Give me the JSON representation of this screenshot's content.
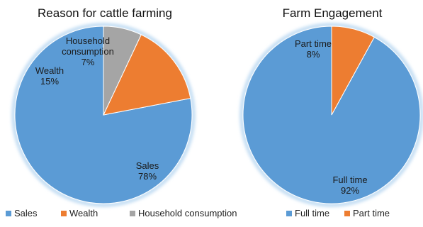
{
  "colors": {
    "sales": "#5b9bd5",
    "wealth": "#ed7d31",
    "household": "#a5a5a5",
    "full_time": "#5b9bd5",
    "part_time": "#ed7d31"
  },
  "chart_data": [
    {
      "type": "pie",
      "title": "Reason for cattle farming",
      "categories": [
        "Sales",
        "Wealth",
        "Household consumption"
      ],
      "values": [
        78,
        15,
        7
      ],
      "value_labels": [
        "78%",
        "15%",
        "7%"
      ],
      "data_labels": [
        [
          "Sales"
        ],
        [
          "Wealth"
        ],
        [
          "Household",
          "consumption"
        ]
      ],
      "legend": [
        "Sales",
        "Wealth",
        "Household consumption"
      ],
      "legend_position": "bottom"
    },
    {
      "type": "pie",
      "title": "Farm Engagement",
      "categories": [
        "Full time",
        "Part time"
      ],
      "values": [
        92,
        8
      ],
      "value_labels": [
        "92%",
        "8%"
      ],
      "data_labels": [
        [
          "Full time"
        ],
        [
          "Part time"
        ]
      ],
      "legend": [
        "Full time",
        "Part time"
      ],
      "legend_position": "bottom"
    }
  ]
}
